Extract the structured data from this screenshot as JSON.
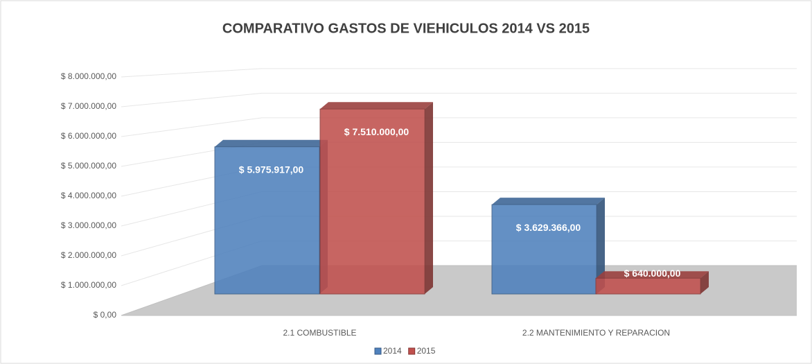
{
  "chart_data": {
    "type": "bar3d",
    "title": "COMPARATIVO GASTOS DE VIEHICULOS  2014 VS 2015",
    "categories": [
      "2.1 COMBUSTIBLE",
      "2.2 MANTENIMIENTO Y REPARACION"
    ],
    "series": [
      {
        "name": "2014",
        "color": "#4f81bd",
        "values": [
          5975917,
          3629366
        ],
        "value_labels": [
          "$ 5.975.917,00",
          "$ 3.629.366,00"
        ]
      },
      {
        "name": "2015",
        "color": "#c0504d",
        "values": [
          7510000,
          640000
        ],
        "value_labels": [
          "$ 7.510.000,00",
          "$ 640.000,00"
        ]
      }
    ],
    "ylim": [
      0,
      8000000
    ],
    "yticks": [
      {
        "value": 0,
        "label": "$ 0,00"
      },
      {
        "value": 1000000,
        "label": "$ 1.000.000,00"
      },
      {
        "value": 2000000,
        "label": "$ 2.000.000,00"
      },
      {
        "value": 3000000,
        "label": "$ 3.000.000,00"
      },
      {
        "value": 4000000,
        "label": "$ 4.000.000,00"
      },
      {
        "value": 5000000,
        "label": "$ 5.000.000,00"
      },
      {
        "value": 6000000,
        "label": "$ 6.000.000,00"
      },
      {
        "value": 7000000,
        "label": "$ 7.000.000,00"
      },
      {
        "value": 8000000,
        "label": "$ 8.000.000,00"
      }
    ],
    "grid": true,
    "legend": "bottom"
  }
}
